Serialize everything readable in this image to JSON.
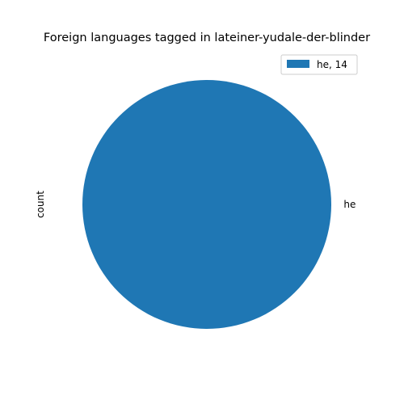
{
  "chart_data": {
    "type": "pie",
    "title": "Foreign languages tagged in lateiner-yudale-der-blinder",
    "ylabel": "count",
    "labels": [
      "he"
    ],
    "values": [
      14
    ],
    "colors": [
      "#1f77b4"
    ],
    "legend": {
      "placement": "top-right",
      "entries": [
        "he, 14"
      ]
    }
  }
}
